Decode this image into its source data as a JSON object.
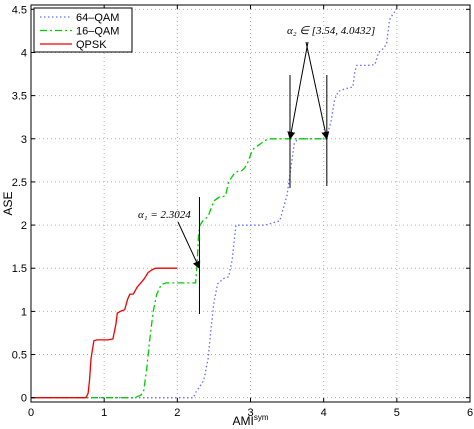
{
  "chart_data": {
    "type": "line",
    "xlabel": "AMI",
    "xlabel_sup": "sym",
    "ylabel": "ASE",
    "xlim": [
      0,
      6
    ],
    "ylim": [
      -0.05,
      4.55
    ],
    "grid": true,
    "legend_position": "top-left",
    "x_ticks": [
      {
        "value": 0,
        "label": "0"
      },
      {
        "value": 1,
        "label": "1"
      },
      {
        "value": 2,
        "label": "2"
      },
      {
        "value": 3,
        "label": "3"
      },
      {
        "value": 4,
        "label": "4"
      },
      {
        "value": 5,
        "label": "5"
      },
      {
        "value": 6,
        "label": "6"
      }
    ],
    "y_ticks": [
      {
        "value": 0,
        "label": "0"
      },
      {
        "value": 0.5,
        "label": "0.5"
      },
      {
        "value": 1,
        "label": "1"
      },
      {
        "value": 1.5,
        "label": "1.5"
      },
      {
        "value": 2,
        "label": "2"
      },
      {
        "value": 2.5,
        "label": "2.5"
      },
      {
        "value": 3,
        "label": "3"
      },
      {
        "value": 3.5,
        "label": "3.5"
      },
      {
        "value": 4,
        "label": "4"
      },
      {
        "value": 4.5,
        "label": "4.5"
      }
    ],
    "series": [
      {
        "name": "64–QAM",
        "color": "#6b6bff",
        "dash": "1.5,2.5",
        "x": [
          0,
          2.22,
          2.25,
          2.3,
          2.36,
          2.42,
          2.46,
          2.5,
          2.55,
          2.63,
          2.7,
          2.75,
          2.8,
          2.9,
          3.0,
          3.2,
          3.4,
          3.5,
          3.55,
          3.6,
          3.65,
          3.7,
          3.8,
          4.0,
          4.05,
          4.1,
          4.15,
          4.2,
          4.3,
          4.4,
          4.42,
          4.45,
          4.5,
          4.6,
          4.7,
          4.75,
          4.82,
          4.86,
          4.9,
          4.95,
          5.0
        ],
        "y": [
          0,
          0,
          0.06,
          0.12,
          0.2,
          0.45,
          0.8,
          1.1,
          1.32,
          1.38,
          1.4,
          1.6,
          2.0,
          2.0,
          2.0,
          2.0,
          2.05,
          2.35,
          2.65,
          2.95,
          3.0,
          3.0,
          3.0,
          3.0,
          3.05,
          3.2,
          3.45,
          3.55,
          3.58,
          3.6,
          3.75,
          3.85,
          3.85,
          3.85,
          3.86,
          4.0,
          4.05,
          4.1,
          4.38,
          4.45,
          4.5
        ]
      },
      {
        "name": "16–QAM",
        "color": "#00cc00",
        "dash": "7,3,2,3",
        "x": [
          0,
          1.4,
          1.45,
          1.5,
          1.54,
          1.58,
          1.62,
          1.67,
          1.72,
          1.78,
          1.85,
          1.95,
          2.05,
          2.15,
          2.2,
          2.25,
          2.27,
          2.29,
          2.31,
          2.35,
          2.42,
          2.5,
          2.58,
          2.62,
          2.66,
          2.7,
          2.78,
          2.84,
          2.88,
          2.92,
          2.96,
          3.02,
          3.06,
          3.1,
          3.15,
          3.2,
          3.25,
          3.3,
          3.35,
          3.4,
          3.45,
          3.5,
          3.6,
          3.7,
          3.8,
          3.9,
          4.0,
          4.04
        ],
        "y": [
          0,
          0,
          0.01,
          0.03,
          0.08,
          0.32,
          0.65,
          1.0,
          1.2,
          1.31,
          1.33,
          1.33,
          1.33,
          1.33,
          1.33,
          1.33,
          1.55,
          1.9,
          2.0,
          2.05,
          2.1,
          2.28,
          2.33,
          2.33,
          2.34,
          2.5,
          2.6,
          2.63,
          2.63,
          2.66,
          2.72,
          2.86,
          2.9,
          2.92,
          2.95,
          2.98,
          3.0,
          3.0,
          3.0,
          3.0,
          3.0,
          3.0,
          3.0,
          3.0,
          3.0,
          3.0,
          3.0,
          3.0
        ]
      },
      {
        "name": "QPSK",
        "color": "#ee0000",
        "dash": "",
        "x": [
          0,
          0.75,
          0.78,
          0.8,
          0.82,
          0.86,
          0.9,
          0.95,
          1.0,
          1.05,
          1.12,
          1.16,
          1.18,
          1.22,
          1.28,
          1.32,
          1.35,
          1.4,
          1.45,
          1.5,
          1.55,
          1.6,
          1.65,
          1.7,
          1.8,
          1.9,
          2.0
        ],
        "y": [
          0,
          0,
          0.05,
          0.2,
          0.45,
          0.66,
          0.67,
          0.67,
          0.67,
          0.67,
          0.68,
          0.85,
          0.98,
          1.0,
          1.02,
          1.14,
          1.2,
          1.2,
          1.28,
          1.33,
          1.38,
          1.45,
          1.48,
          1.5,
          1.5,
          1.5,
          1.5
        ]
      }
    ],
    "annotations": [
      {
        "text": "α₁ = 2.3024",
        "x": 2.3024,
        "y": 1.5
      },
      {
        "text": "α₂ ∈ [3.54, 4.0432]",
        "x": [
          3.54,
          4.0432
        ],
        "y": 3.0
      }
    ]
  }
}
